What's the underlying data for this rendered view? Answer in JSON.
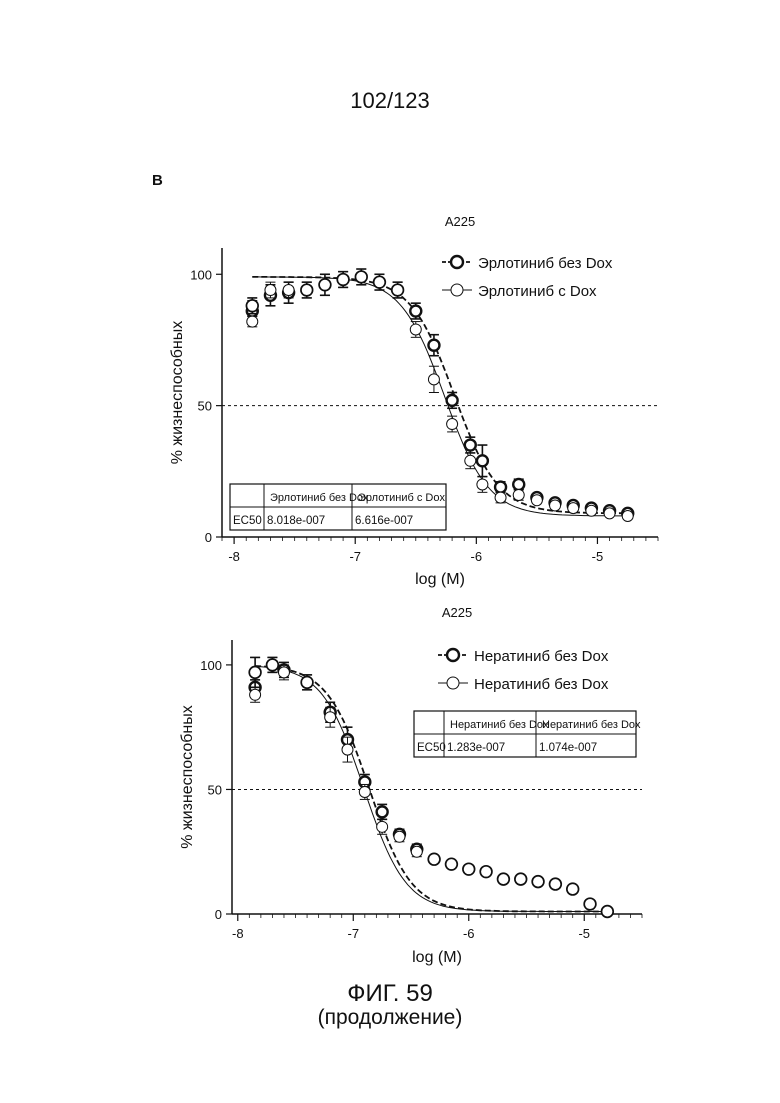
{
  "page": {
    "number": "102/123",
    "panel_letter": "B",
    "figure_title": "ФИГ. 59",
    "figure_subtitle": "(продолжение)"
  },
  "chart_data": [
    {
      "type": "scatter",
      "title": "A225",
      "xlabel": "log (M)",
      "ylabel": "% жизнеспособных",
      "xlim": [
        -8.1,
        -4.5
      ],
      "ylim": [
        0,
        110
      ],
      "xticks": [
        -8,
        -7,
        -6,
        -5
      ],
      "yticks": [
        0,
        50,
        100
      ],
      "reference_line_y": 50,
      "legend_position": "top-right",
      "series": [
        {
          "name": "Эрлотиниб без Dox",
          "style": "thick",
          "x": [
            -7.85,
            -7.85,
            -7.7,
            -7.55,
            -7.4,
            -7.25,
            -7.1,
            -6.95,
            -6.8,
            -6.65,
            -6.5,
            -6.35,
            -6.2,
            -6.05,
            -5.95,
            -5.8,
            -5.65,
            -5.5,
            -5.35,
            -5.2,
            -5.05,
            -4.9,
            -4.75
          ],
          "y": [
            86,
            88,
            92,
            93,
            94,
            96,
            98,
            99,
            97,
            94,
            86,
            73,
            52,
            35,
            29,
            19,
            20,
            15,
            13,
            12,
            11,
            10,
            9
          ],
          "err": [
            2,
            3,
            4,
            4,
            3,
            4,
            3,
            3,
            3,
            3,
            3,
            4,
            3,
            3,
            6,
            2,
            2,
            1,
            1,
            1,
            1,
            1,
            1
          ]
        },
        {
          "name": "Эрлотиниб с Dox",
          "style": "thin",
          "x": [
            -7.85,
            -7.85,
            -7.7,
            -7.55,
            -7.4,
            -7.25,
            -7.1,
            -6.95,
            -6.8,
            -6.65,
            -6.5,
            -6.35,
            -6.2,
            -6.05,
            -5.95,
            -5.8,
            -5.65,
            -5.5,
            -5.35,
            -5.2,
            -5.05,
            -4.9,
            -4.75
          ],
          "y": [
            82,
            88,
            94,
            94,
            94,
            96,
            98,
            99,
            97,
            94,
            79,
            60,
            43,
            29,
            20,
            15,
            16,
            14,
            12,
            11,
            10,
            9,
            8
          ],
          "err": [
            2,
            2,
            3,
            3,
            3,
            4,
            3,
            3,
            3,
            3,
            3,
            5,
            3,
            3,
            3,
            2,
            2,
            1,
            1,
            1,
            1,
            1,
            1
          ]
        }
      ],
      "table": {
        "columns": [
          "",
          "Эрлотиниб без Dox",
          "Эрлотиниб с Dox"
        ],
        "rows": [
          [
            "EC50",
            "8.018e-007",
            "6.616e-007"
          ]
        ]
      }
    },
    {
      "type": "scatter",
      "title": "A225",
      "xlabel": "log (M)",
      "ylabel": "% жизнеспособных",
      "xlim": [
        -8.05,
        -4.5
      ],
      "ylim": [
        0,
        110
      ],
      "xticks": [
        -8,
        -7,
        -6,
        -5
      ],
      "yticks": [
        0,
        50,
        100
      ],
      "reference_line_y": 50,
      "legend_position": "top-right",
      "series": [
        {
          "name": "Нератиниб без Dox",
          "style": "thick",
          "x": [
            -7.85,
            -7.85,
            -7.7,
            -7.6,
            -7.4,
            -7.2,
            -7.05,
            -6.9,
            -6.75,
            -6.6,
            -6.45,
            -6.3,
            -6.15,
            -6.0,
            -5.85,
            -5.7,
            -5.55,
            -5.4,
            -5.25,
            -5.1,
            -4.95,
            -4.8
          ],
          "y": [
            91,
            97,
            100,
            98,
            93,
            81,
            70,
            53,
            41,
            32,
            26,
            22,
            20,
            18,
            17,
            14,
            14,
            13,
            12,
            10,
            4,
            1
          ],
          "err": [
            3,
            6,
            3,
            3,
            3,
            4,
            5,
            3,
            3,
            2,
            2,
            1,
            1,
            1,
            1,
            1,
            1,
            1,
            1,
            1,
            1,
            1
          ]
        },
        {
          "name": "Нератиниб без Dox",
          "style": "thin",
          "x": [
            -7.85,
            -7.85,
            -7.7,
            -7.6,
            -7.4,
            -7.2,
            -7.05,
            -6.9,
            -6.75,
            -6.6,
            -6.45,
            -6.3,
            -6.15,
            -6.0,
            -5.85,
            -5.7,
            -5.55,
            -5.4,
            -5.25,
            -5.1,
            -4.95,
            -4.8
          ],
          "y": [
            88,
            97,
            100,
            97,
            93,
            79,
            66,
            49,
            35,
            31,
            25,
            22,
            20,
            18,
            17,
            14,
            14,
            13,
            12,
            10,
            4,
            1
          ],
          "err": [
            3,
            6,
            3,
            3,
            3,
            4,
            5,
            3,
            3,
            2,
            2,
            1,
            1,
            1,
            1,
            1,
            1,
            1,
            1,
            1,
            1,
            1
          ]
        }
      ],
      "table": {
        "columns": [
          "",
          "Нератиниб без Dox",
          "Нератиниб без Dox"
        ],
        "rows": [
          [
            "EC50",
            "1.283e-007",
            "1.074e-007"
          ]
        ]
      }
    }
  ]
}
